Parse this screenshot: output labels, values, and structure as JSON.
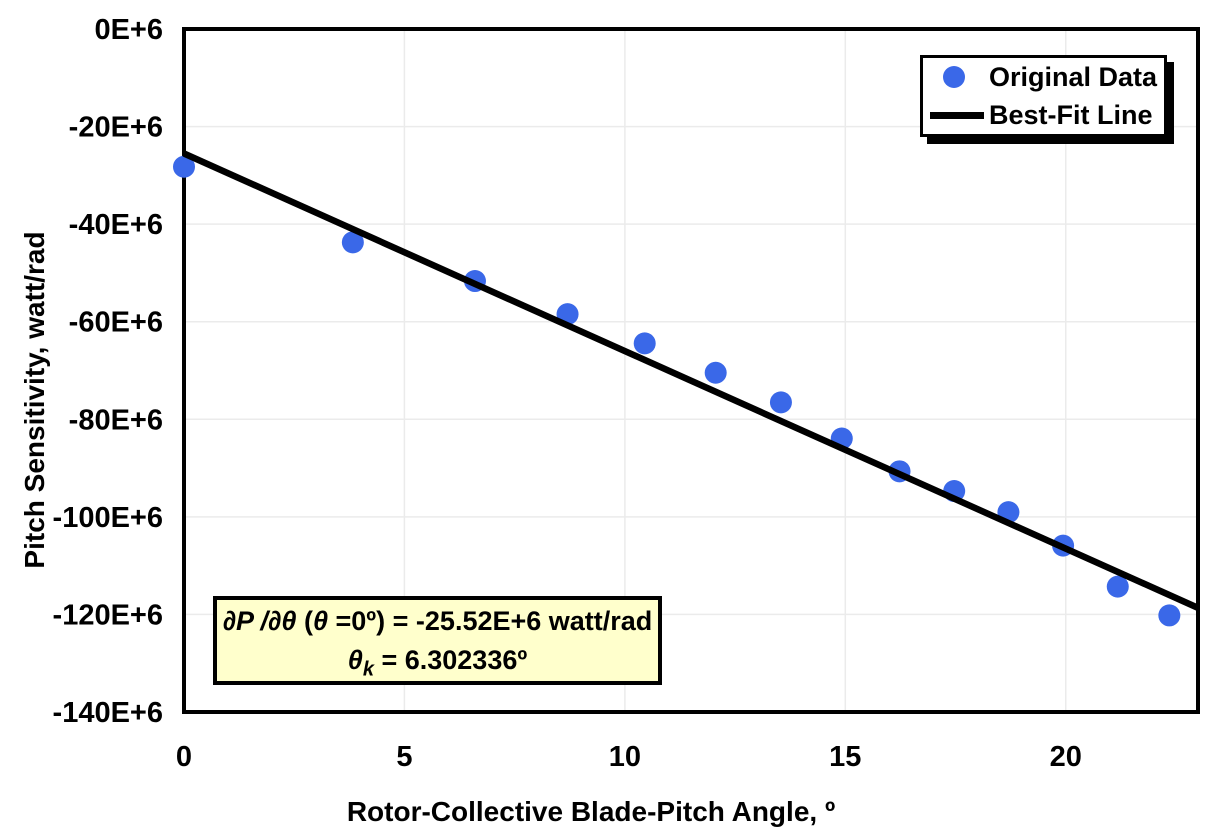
{
  "colors": {
    "marker": "#3A68E8",
    "fit_line": "#000000",
    "grid": "#EBEBEB",
    "frame": "#000000",
    "annotation_bg": "#FFFFCC",
    "text": "#000000",
    "background": "#FFFFFF"
  },
  "legend": {
    "items": [
      {
        "label": "Original Data",
        "marker": "blue-dot"
      },
      {
        "label": "Best-Fit Line",
        "marker": "black-line"
      }
    ]
  },
  "annotation": {
    "l1a": "∂P /∂θ ",
    "l1b": "(",
    "l1c": "θ ",
    "l1d": "=0º) = -25.52E+6 watt/rad",
    "l2a": "θ",
    "l2b": "k",
    "l2c": " = 6.302336º"
  },
  "chart_data": {
    "type": "scatter",
    "title": "",
    "xlabel": "Rotor-Collective Blade-Pitch Angle, º",
    "ylabel": "Pitch Sensitivity, watt/rad",
    "units": "pitch sensitivity values in E+6 watt/rad",
    "xlim": [
      0,
      23
    ],
    "ylim_e6": [
      -140,
      0
    ],
    "grid": true,
    "legend_position": "top-right",
    "x_ticks": [
      {
        "value": 0,
        "label": "0"
      },
      {
        "value": 5,
        "label": "5"
      },
      {
        "value": 10,
        "label": "10"
      },
      {
        "value": 15,
        "label": "15"
      },
      {
        "value": 20,
        "label": "20"
      }
    ],
    "y_ticks": [
      {
        "value": 0,
        "label": "0E+6"
      },
      {
        "value": -20,
        "label": "-20E+6"
      },
      {
        "value": -40,
        "label": "-40E+6"
      },
      {
        "value": -60,
        "label": "-60E+6"
      },
      {
        "value": -80,
        "label": "-80E+6"
      },
      {
        "value": -100,
        "label": "-100E+6"
      },
      {
        "value": -120,
        "label": "-120E+6"
      },
      {
        "value": -140,
        "label": "-140E+6"
      }
    ],
    "series": [
      {
        "name": "Original Data",
        "type": "scatter",
        "color": "#3A68E8",
        "points": [
          [
            0.0,
            -28.24
          ],
          [
            3.83,
            -43.73
          ],
          [
            6.6,
            -51.66
          ],
          [
            8.7,
            -58.44
          ],
          [
            10.45,
            -64.44
          ],
          [
            12.06,
            -70.46
          ],
          [
            13.54,
            -76.53
          ],
          [
            14.92,
            -83.94
          ],
          [
            16.23,
            -90.67
          ],
          [
            17.47,
            -94.71
          ],
          [
            18.7,
            -99.04
          ],
          [
            19.94,
            -105.9
          ],
          [
            21.18,
            -114.3
          ],
          [
            22.35,
            -120.2
          ]
        ]
      },
      {
        "name": "Best-Fit Line",
        "type": "line",
        "color": "#000000",
        "points": [
          [
            0,
            -25.52
          ],
          [
            23,
            -118.66
          ]
        ]
      }
    ]
  }
}
